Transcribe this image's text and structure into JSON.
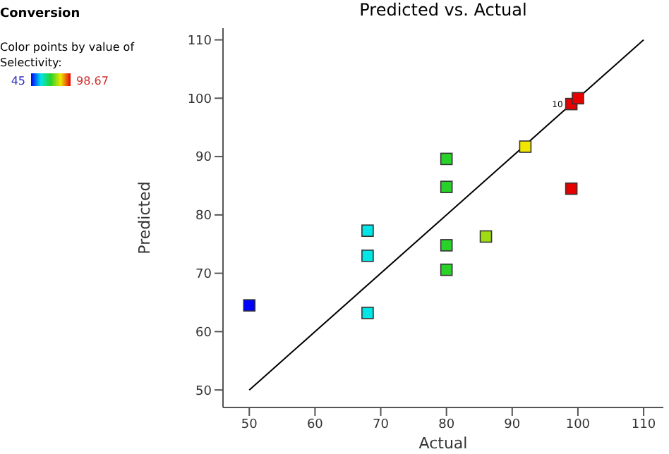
{
  "chart_data": {
    "type": "scatter",
    "title": "Predicted vs. Actual",
    "xlabel": "Actual",
    "ylabel": "Predicted",
    "clabel": "Color points by value of Selectivity:",
    "annotations": [
      "Conversion",
      "45",
      "98.67",
      {
        "text": "10",
        "x": 99,
        "y": 99
      }
    ],
    "xlim": [
      46,
      113
    ],
    "ylim": [
      47,
      112
    ],
    "xticks": [
      50,
      60,
      70,
      80,
      90,
      100,
      110
    ],
    "yticks": [
      50,
      60,
      70,
      80,
      90,
      100,
      110
    ],
    "grid": false,
    "legend": false,
    "marker": "square",
    "series": [
      {
        "x": [
          50,
          68,
          68,
          68,
          80,
          80,
          80,
          80,
          86,
          92,
          99,
          99,
          100
        ],
        "values": [
          64.5,
          77.3,
          73,
          63.2,
          89.6,
          84.8,
          74.8,
          70.6,
          76.3,
          91.7,
          84.5,
          99,
          100
        ],
        "colors": [
          "#0000ff",
          "#00e6e6",
          "#00e6e6",
          "#00e6e6",
          "#28d228",
          "#28d228",
          "#28d228",
          "#28d228",
          "#a0dc14",
          "#f0e600",
          "#e60000",
          "#e60000",
          "#e60000"
        ]
      },
      {
        "type": "line",
        "marker": "none",
        "line_style": "solid",
        "color": "#000000",
        "x": [
          50,
          110
        ],
        "values": [
          50,
          110
        ]
      }
    ]
  }
}
